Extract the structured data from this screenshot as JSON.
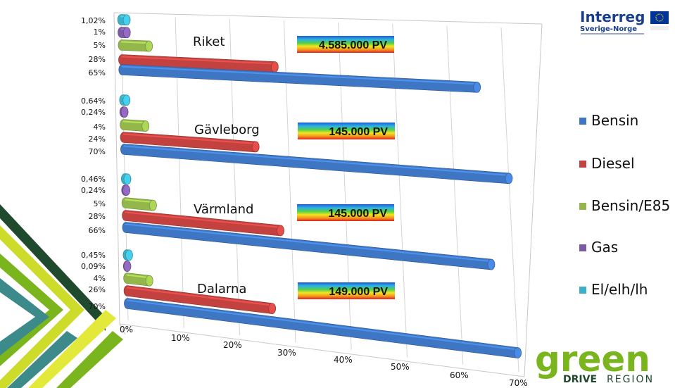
{
  "logos": {
    "interreg_line1": "Interreg",
    "interreg_line2": "Sverige-Norge",
    "green": "green",
    "drive": "DRIVE",
    "region": "REGION",
    "colors": {
      "green": "#7ab51d",
      "interreg_blue": "#1a3e8c",
      "eu_blue": "#003399",
      "dark_green": "#1f4a2e"
    }
  },
  "chart_data": {
    "type": "bar",
    "orientation": "horizontal",
    "x_ticks": [
      "0%",
      "10%",
      "20%",
      "30%",
      "40%",
      "50%",
      "60%",
      "70%"
    ],
    "xlim": [
      0,
      70
    ],
    "series": [
      {
        "name": "El/elh/lh",
        "color": "#3bb0c9"
      },
      {
        "name": "Gas",
        "color": "#7d5aa6"
      },
      {
        "name": "Bensin/E85",
        "color": "#93b74a"
      },
      {
        "name": "Diesel",
        "color": "#c3423f"
      },
      {
        "name": "Bensin",
        "color": "#3e76c4"
      }
    ],
    "groups": [
      {
        "name": "Riket",
        "total": "4.585.000 PV",
        "values": [
          1.02,
          1,
          5,
          28,
          65
        ],
        "labels": [
          "1,02%",
          "1%",
          "5%",
          "28%",
          "65%"
        ]
      },
      {
        "name": "Gävleborg",
        "total": "145.000 PV",
        "values": [
          0.64,
          0.24,
          4,
          24,
          70
        ],
        "labels": [
          "0,64%",
          "0,24%",
          "4%",
          "24%",
          "70%"
        ]
      },
      {
        "name": "Värmland",
        "total": "145.000 PV",
        "values": [
          0.46,
          0.24,
          5,
          28,
          66
        ],
        "labels": [
          "0,46%",
          "0,24%",
          "5%",
          "28%",
          "66%"
        ]
      },
      {
        "name": "Dalarna",
        "total": "149.000 PV",
        "values": [
          0.45,
          0.09,
          4,
          26,
          70
        ],
        "labels": [
          "0,45%",
          "0,09%",
          "4%",
          "26%",
          "70%"
        ]
      }
    ]
  }
}
